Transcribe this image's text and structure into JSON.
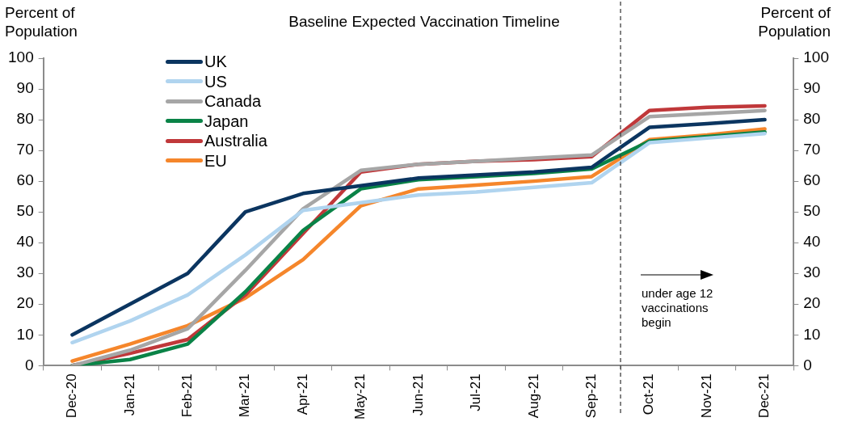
{
  "chart_data": {
    "type": "line",
    "title": "Baseline Expected Vaccination Timeline",
    "ylabel": "Percent of Population",
    "y2label": "Percent of Population",
    "categories": [
      "Dec-20",
      "Jan-21",
      "Feb-21",
      "Mar-21",
      "Apr-21",
      "May-21",
      "Jun-21",
      "Jul-21",
      "Aug-21",
      "Sep-21",
      "Oct-21",
      "Nov-21",
      "Dec-21"
    ],
    "series": [
      {
        "name": "UK",
        "color": "#0b3560",
        "values": [
          10,
          20,
          30,
          50,
          56,
          58.5,
          61,
          62,
          63,
          64.5,
          77.5,
          78.7,
          80
        ]
      },
      {
        "name": "US",
        "color": "#b0d4ef",
        "values": [
          7.5,
          14.5,
          23,
          36,
          50.5,
          53,
          55.5,
          56.5,
          58,
          59.5,
          72.5,
          74,
          75.5
        ]
      },
      {
        "name": "Canada",
        "color": "#a6a6a6",
        "values": [
          0,
          5,
          12,
          31,
          51,
          63.5,
          65.5,
          66.5,
          67.5,
          68.5,
          81,
          82,
          83
        ]
      },
      {
        "name": "Japan",
        "color": "#0a8347",
        "values": [
          0,
          2,
          7,
          24,
          44,
          57.5,
          60.5,
          61.5,
          62.5,
          64,
          73,
          74.5,
          76
        ]
      },
      {
        "name": "Australia",
        "color": "#c0383a",
        "values": [
          0,
          4,
          8.5,
          23,
          43,
          63,
          65.5,
          66.5,
          67,
          68,
          83,
          84,
          84.5
        ]
      },
      {
        "name": "EU",
        "color": "#f5862b",
        "values": [
          1.5,
          7,
          13,
          22,
          34.5,
          52,
          57.5,
          58.7,
          60,
          61.5,
          73.5,
          75,
          77
        ]
      }
    ],
    "ylim": [
      0,
      100
    ],
    "yticks": [
      0,
      10,
      20,
      30,
      40,
      50,
      60,
      70,
      80,
      90,
      100
    ],
    "y2lim": [
      0,
      100
    ],
    "y2ticks": [
      0,
      10,
      20,
      30,
      40,
      50,
      60,
      70,
      80,
      90,
      100
    ],
    "annotations": [
      "under age 12\nvaccinations\nbegin"
    ],
    "grid": false,
    "legend": "top left",
    "marker": "none",
    "line_style": "solid"
  }
}
